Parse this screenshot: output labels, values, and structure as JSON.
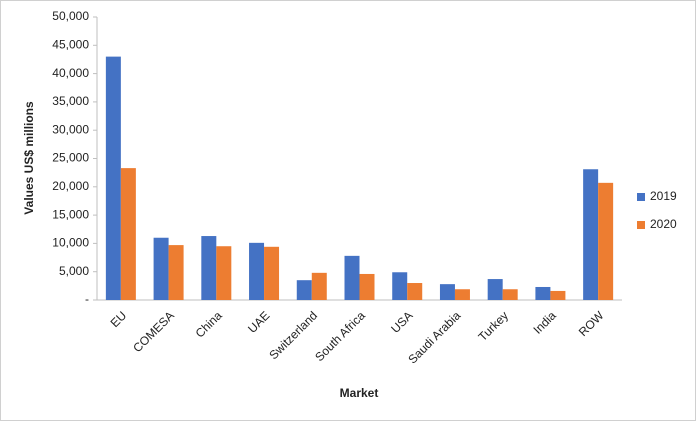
{
  "chart_data": {
    "type": "bar",
    "y_label": "Values US$ millions",
    "x_label": "Market",
    "categories": [
      "EU",
      "COMESA",
      "China",
      "UAE",
      "Switzerland",
      "South Africa",
      "USA",
      "Saudi Arabia",
      "Turkey",
      "India",
      "ROW"
    ],
    "series": [
      {
        "name": "2019",
        "color": "#4472c4",
        "values": [
          43000,
          11000,
          11300,
          10100,
          3500,
          7800,
          4900,
          2800,
          3700,
          2300,
          23100
        ]
      },
      {
        "name": "2020",
        "color": "#ed7d31",
        "values": [
          23300,
          9700,
          9500,
          9400,
          4800,
          4600,
          3000,
          1900,
          1900,
          1600,
          20700
        ]
      }
    ],
    "ylim": [
      0,
      50000
    ],
    "yticks": [
      {
        "value": 0,
        "label": "-"
      },
      {
        "value": 5000,
        "label": "5,000"
      },
      {
        "value": 10000,
        "label": "10,000"
      },
      {
        "value": 15000,
        "label": "15,000"
      },
      {
        "value": 20000,
        "label": "20,000"
      },
      {
        "value": 25000,
        "label": "25,000"
      },
      {
        "value": 30000,
        "label": "30,000"
      },
      {
        "value": 35000,
        "label": "35,000"
      },
      {
        "value": 40000,
        "label": "40,000"
      },
      {
        "value": 45000,
        "label": "45,000"
      },
      {
        "value": 50000,
        "label": "50,000"
      }
    ],
    "legend": "right"
  }
}
